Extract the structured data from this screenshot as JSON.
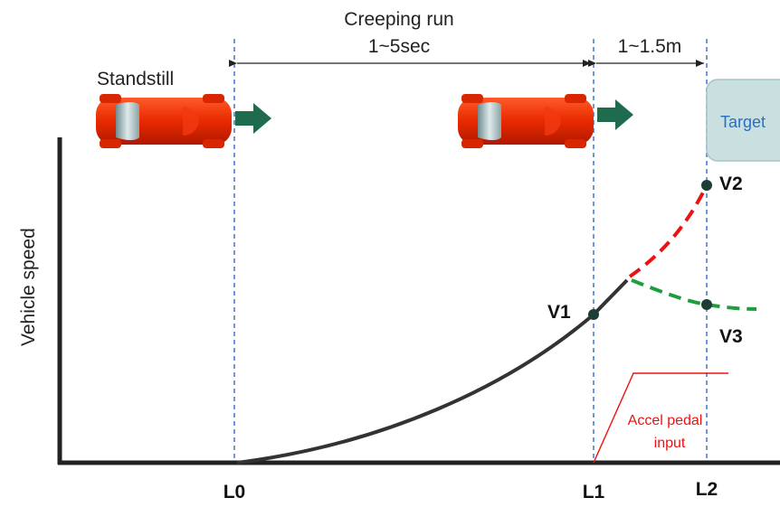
{
  "header": {
    "phase1_title": "Creeping run",
    "phase1_duration": "1~5sec",
    "phase2_distance": "1~1.5m"
  },
  "labels": {
    "standstill": "Standstill",
    "target": "Target",
    "y_axis": "Vehicle speed",
    "accel_line1": "Accel pedal",
    "accel_line2": "input"
  },
  "points": {
    "v1": "V1",
    "v2": "V2",
    "v3": "V3"
  },
  "positions": {
    "l0": "L0",
    "l1": "L1",
    "l2": "L2"
  },
  "colors": {
    "car_body": "#e82a00",
    "arrow": "#1f6b4e",
    "guide_line": "#4a7fd4",
    "speed_curve": "#333333",
    "accelerate_branch": "#ee1111",
    "decelerate_branch": "#1e9e3c",
    "pedal_input": "#ee1111",
    "target_box": "#c9dfe0",
    "target_text": "#2a6fc0"
  }
}
